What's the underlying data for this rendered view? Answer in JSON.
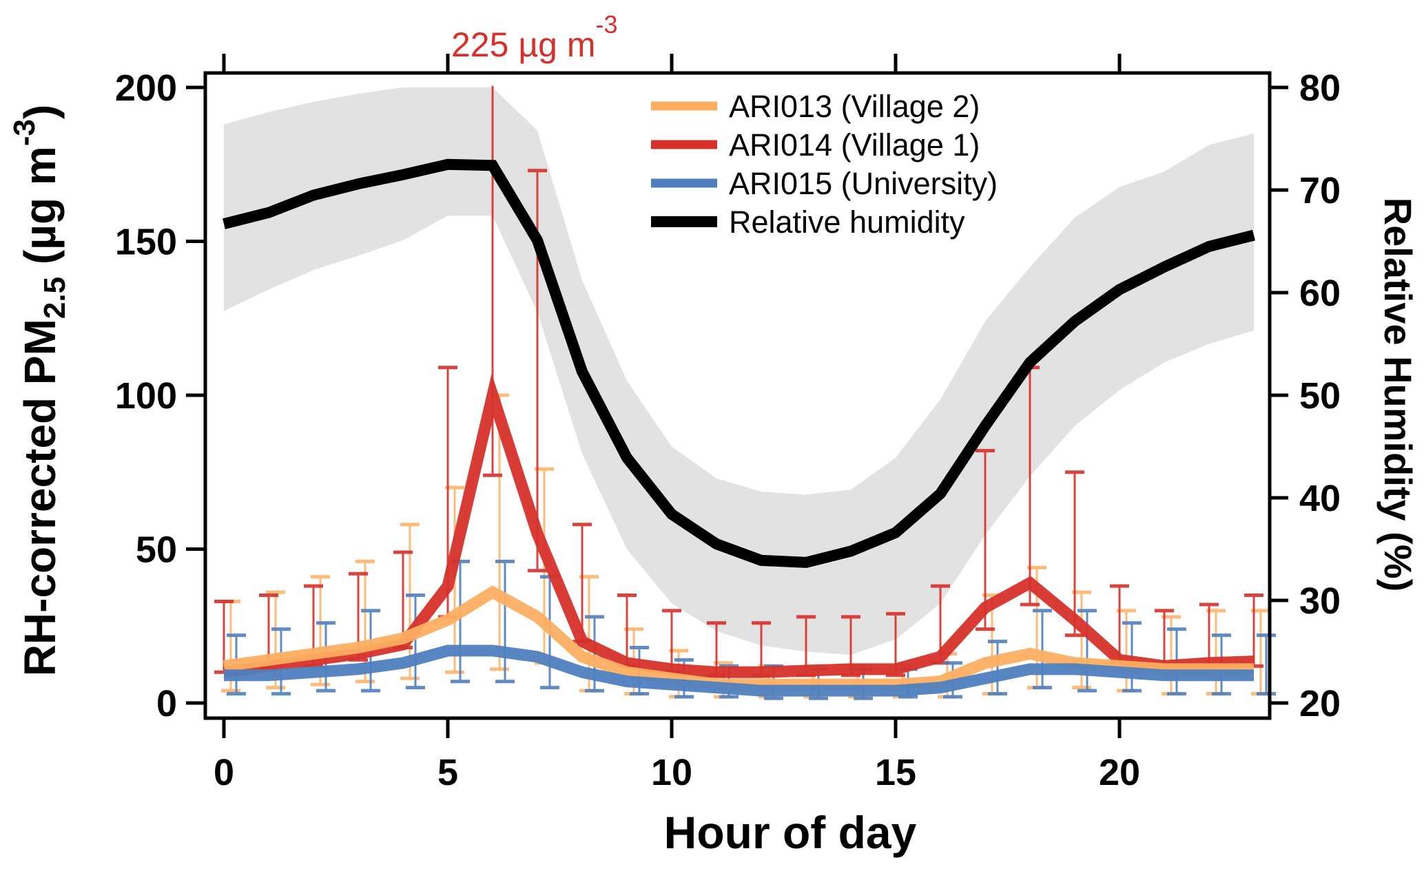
{
  "chart_data": {
    "type": "line",
    "title": "",
    "xlabel": "Hour of day",
    "ylabel": {
      "main": "RH-corrected PM",
      "sub": "2.5",
      "unit": " (µg m",
      "sup": "-3",
      "close": ")"
    },
    "y2label": "Relative Humidity (%)",
    "xlim": [
      0,
      23
    ],
    "ylim": [
      0,
      200
    ],
    "y2lim": [
      20,
      80
    ],
    "xticks": [
      "0",
      "5",
      "10",
      "15",
      "20"
    ],
    "yticks": [
      "0",
      "50",
      "100",
      "150",
      "200"
    ],
    "y2ticks": [
      "20",
      "30",
      "40",
      "50",
      "60",
      "70",
      "80"
    ],
    "grid": false,
    "legend_position": "top-right",
    "x": [
      0,
      1,
      2,
      3,
      4,
      5,
      6,
      7,
      8,
      9,
      10,
      11,
      12,
      13,
      14,
      15,
      16,
      17,
      18,
      19,
      20,
      21,
      22,
      23
    ],
    "series": [
      {
        "name": "ARI013 (Village 2)",
        "axis": "left",
        "color": "#fdae61",
        "values": [
          12,
          14,
          16,
          18,
          21,
          27,
          36,
          28,
          15,
          10,
          8,
          6,
          6,
          6,
          6,
          6,
          7,
          13,
          16,
          13,
          12,
          11,
          11,
          11
        ],
        "err_upper": [
          33,
          36,
          41,
          46,
          58,
          70,
          100,
          76,
          41,
          24,
          17,
          13,
          12,
          12,
          12,
          12,
          16,
          35,
          44,
          36,
          30,
          28,
          30,
          30
        ],
        "err_lower": [
          4,
          5,
          6,
          7,
          8,
          10,
          11,
          13,
          4,
          3,
          2,
          2,
          2,
          2,
          2,
          2,
          2,
          3,
          5,
          5,
          4,
          3,
          3,
          3
        ]
      },
      {
        "name": "ARI014 (Village 1)",
        "axis": "left",
        "color": "#d7302a",
        "values": [
          10,
          12,
          14,
          16,
          19,
          38,
          100,
          55,
          20,
          13,
          11,
          10,
          10,
          10.5,
          11,
          11,
          15,
          31,
          39,
          27,
          14,
          12,
          13,
          13.5
        ],
        "err_upper": [
          33,
          35,
          38,
          42,
          49,
          109,
          225,
          173,
          58,
          35,
          30,
          26,
          26,
          28,
          28,
          29,
          38,
          82,
          109,
          75,
          38,
          30,
          32,
          35
        ],
        "err_lower": [
          10,
          11,
          12,
          14,
          18,
          28,
          74,
          43,
          20,
          12,
          10,
          9,
          9,
          9,
          9,
          9,
          13,
          24,
          32,
          22,
          13,
          11,
          12,
          12
        ]
      },
      {
        "name": "ARI015 (University)",
        "axis": "left",
        "color": "#4f7fbf",
        "values": [
          9,
          9,
          10,
          11,
          13,
          17,
          17,
          15,
          10,
          7,
          6,
          5,
          4,
          4,
          4,
          4,
          5,
          8,
          11,
          11,
          10,
          9,
          9,
          9
        ],
        "err_upper": [
          22,
          24,
          26,
          30,
          35,
          46,
          46,
          41,
          28,
          18,
          14,
          12,
          12,
          11,
          11,
          11,
          13,
          20,
          30,
          30,
          26,
          24,
          22,
          22
        ],
        "err_lower": [
          3,
          3,
          4,
          4,
          5,
          7,
          7,
          5,
          4,
          3,
          2,
          2,
          1.5,
          1.5,
          1.5,
          2,
          2,
          3,
          5,
          4,
          4,
          3,
          3,
          3
        ]
      },
      {
        "name": "Relative humidity",
        "axis": "right",
        "color": "#000000",
        "values": [
          66.7,
          67.8,
          69.5,
          70.6,
          71.5,
          72.5,
          72.4,
          65.1,
          52.3,
          43.9,
          38.4,
          35.5,
          33.9,
          33.7,
          34.8,
          36.6,
          40.4,
          47,
          53.2,
          57.2,
          60.3,
          62.5,
          64.5,
          65.6
        ],
        "band_upper": [
          76.4,
          77.6,
          78.6,
          79.4,
          80,
          80,
          80,
          75.8,
          61.2,
          51.4,
          45,
          41.9,
          40.6,
          40.3,
          40.8,
          43.9,
          49.6,
          57.2,
          62.5,
          67.3,
          70.3,
          71.8,
          74.4,
          75.5
        ],
        "band_lower": [
          58.2,
          60.3,
          62.2,
          63.6,
          65.1,
          67.5,
          67.5,
          58.1,
          44.3,
          35,
          29.7,
          27,
          25.6,
          25,
          24.7,
          26.2,
          29.7,
          36.4,
          42.1,
          47,
          50.5,
          53.2,
          55,
          56.3
        ],
        "band_color": "#e2e2e2"
      }
    ],
    "annotations": [
      {
        "text": "225 µg m",
        "sup": "-3",
        "x": 6,
        "color": "#d7302a"
      }
    ]
  }
}
